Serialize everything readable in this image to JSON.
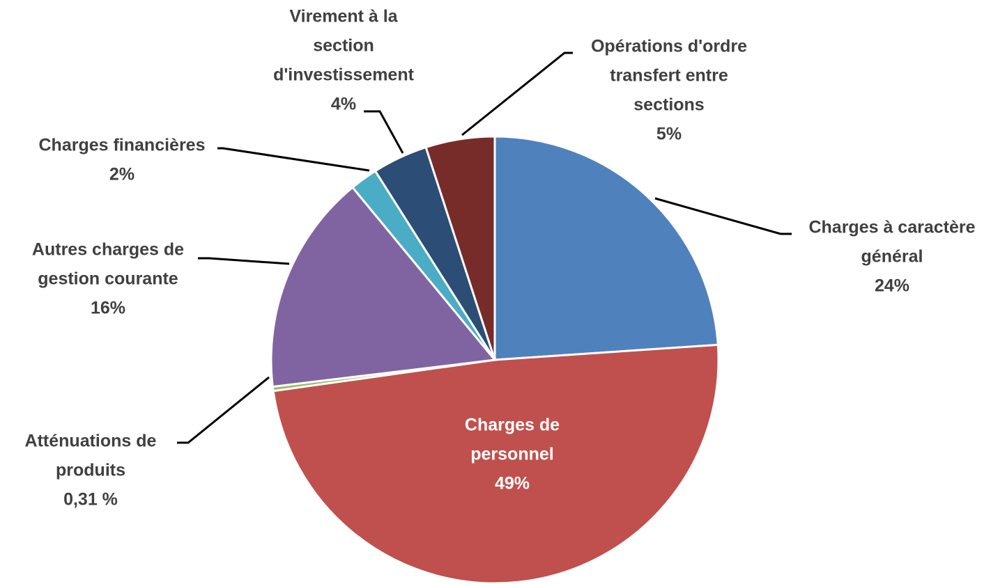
{
  "chart_data": {
    "type": "pie",
    "categories": [
      [
        "Charges à caractère",
        "général"
      ],
      [
        "Charges de",
        "personnel"
      ],
      [
        "Atténuations de",
        "produits"
      ],
      [
        "Autres charges de",
        "gestion courante"
      ],
      [
        "Charges financières"
      ],
      [
        "Virement à la",
        "section",
        "d'investissement"
      ],
      [
        "Opérations d'ordre",
        "transfert entre",
        "sections"
      ]
    ],
    "values": [
      24,
      49,
      0.31,
      16,
      2,
      4,
      5
    ],
    "value_labels": [
      "24%",
      "49%",
      "0,31 %",
      "16%",
      "2%",
      "4%",
      "5%"
    ],
    "colors": [
      "#4f81bd",
      "#c0504d",
      "#9bbb59",
      "#8064a2",
      "#4bacc6",
      "#2c4d75",
      "#772c2a"
    ]
  }
}
